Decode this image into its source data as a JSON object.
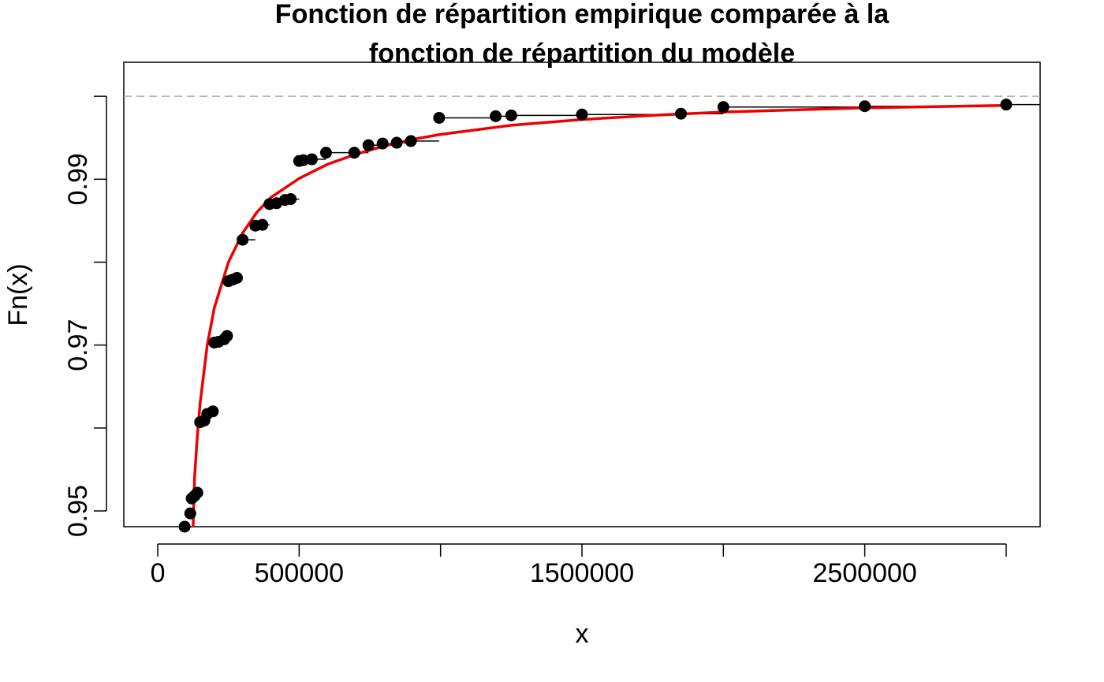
{
  "chart_data": {
    "type": "scatter",
    "title_lines": [
      "Fonction de répartition empirique comparée à la",
      "fonction de répartition du modèle"
    ],
    "xlabel": "x",
    "ylabel": "Fn(x)",
    "xlim": [
      -120000,
      3120000
    ],
    "ylim": [
      0.9481,
      1.0041
    ],
    "x_ticks": [
      0,
      500000,
      1000000,
      1500000,
      2000000,
      2500000,
      3000000
    ],
    "x_tick_labels": [
      "0",
      "500000",
      "",
      "1500000",
      "",
      "2500000",
      ""
    ],
    "y_ticks": [
      0.95,
      0.96,
      0.97,
      0.98,
      0.99,
      1.0
    ],
    "y_tick_labels": [
      "0.95",
      "",
      "0.97",
      "",
      "0.99",
      ""
    ],
    "reference_line": {
      "y": 1.0,
      "style": "dashed",
      "color": "#aaaaaa"
    },
    "ecdf_points": [
      {
        "x": 95000,
        "y": 0.9481
      },
      {
        "x": 115000,
        "y": 0.9497
      },
      {
        "x": 120000,
        "y": 0.9515
      },
      {
        "x": 130000,
        "y": 0.9518
      },
      {
        "x": 140000,
        "y": 0.9522
      },
      {
        "x": 150000,
        "y": 0.9607
      },
      {
        "x": 165000,
        "y": 0.9609
      },
      {
        "x": 175000,
        "y": 0.9617
      },
      {
        "x": 195000,
        "y": 0.962
      },
      {
        "x": 200000,
        "y": 0.9703
      },
      {
        "x": 215000,
        "y": 0.9704
      },
      {
        "x": 235000,
        "y": 0.9707
      },
      {
        "x": 245000,
        "y": 0.9711
      },
      {
        "x": 250000,
        "y": 0.9777
      },
      {
        "x": 265000,
        "y": 0.9779
      },
      {
        "x": 280000,
        "y": 0.9781
      },
      {
        "x": 300000,
        "y": 0.9827
      },
      {
        "x": 345000,
        "y": 0.9844
      },
      {
        "x": 370000,
        "y": 0.9845
      },
      {
        "x": 395000,
        "y": 0.987
      },
      {
        "x": 420000,
        "y": 0.9871
      },
      {
        "x": 450000,
        "y": 0.9875
      },
      {
        "x": 470000,
        "y": 0.9876
      },
      {
        "x": 500000,
        "y": 0.9922
      },
      {
        "x": 515000,
        "y": 0.9923
      },
      {
        "x": 545000,
        "y": 0.9924
      },
      {
        "x": 595000,
        "y": 0.9932
      },
      {
        "x": 695000,
        "y": 0.9932
      },
      {
        "x": 745000,
        "y": 0.9941
      },
      {
        "x": 795000,
        "y": 0.9943
      },
      {
        "x": 845000,
        "y": 0.9944
      },
      {
        "x": 895000,
        "y": 0.9946
      },
      {
        "x": 995000,
        "y": 0.9974
      },
      {
        "x": 1195000,
        "y": 0.9976
      },
      {
        "x": 1250000,
        "y": 0.9977
      },
      {
        "x": 1500000,
        "y": 0.9978
      },
      {
        "x": 1850000,
        "y": 0.9979
      },
      {
        "x": 2000000,
        "y": 0.9987
      },
      {
        "x": 2500000,
        "y": 0.9988
      },
      {
        "x": 3000000,
        "y": 0.999
      }
    ],
    "model_curve": {
      "color": "#ee0000",
      "points": [
        {
          "x": 125000,
          "y": 0.9481
        },
        {
          "x": 130000,
          "y": 0.954
        },
        {
          "x": 140000,
          "y": 0.959
        },
        {
          "x": 150000,
          "y": 0.963
        },
        {
          "x": 175000,
          "y": 0.97
        },
        {
          "x": 200000,
          "y": 0.9745
        },
        {
          "x": 250000,
          "y": 0.98
        },
        {
          "x": 300000,
          "y": 0.9835
        },
        {
          "x": 350000,
          "y": 0.986
        },
        {
          "x": 400000,
          "y": 0.9878
        },
        {
          "x": 500000,
          "y": 0.9901
        },
        {
          "x": 600000,
          "y": 0.9918
        },
        {
          "x": 700000,
          "y": 0.993
        },
        {
          "x": 800000,
          "y": 0.994
        },
        {
          "x": 900000,
          "y": 0.9948
        },
        {
          "x": 1000000,
          "y": 0.9954
        },
        {
          "x": 1250000,
          "y": 0.9965
        },
        {
          "x": 1500000,
          "y": 0.9972
        },
        {
          "x": 1750000,
          "y": 0.9977
        },
        {
          "x": 2000000,
          "y": 0.9981
        },
        {
          "x": 2500000,
          "y": 0.9986
        },
        {
          "x": 3000000,
          "y": 0.9989
        }
      ]
    },
    "grid": false,
    "legend": "none"
  }
}
